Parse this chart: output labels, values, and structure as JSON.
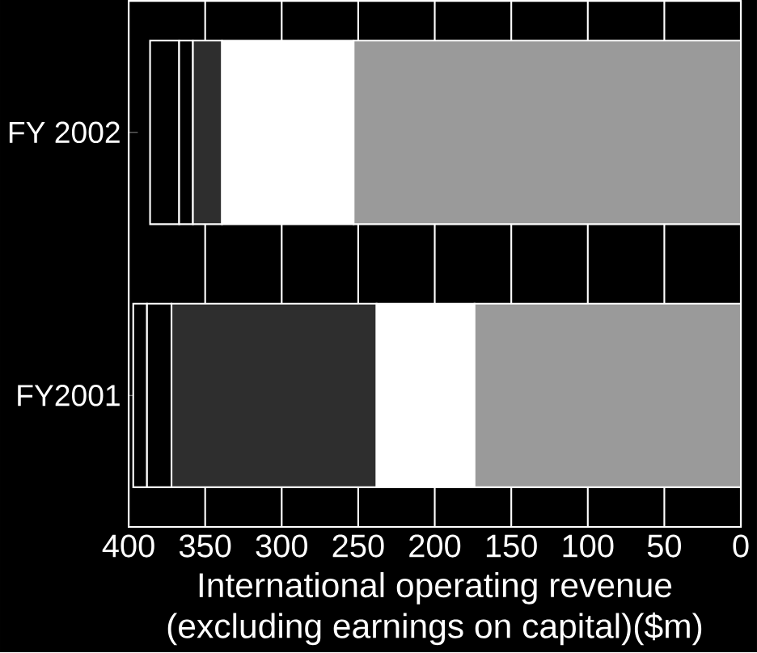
{
  "chart_data": {
    "type": "bar",
    "orientation": "horizontal",
    "stacked": true,
    "xlabel": "International operating revenue\n(excluding earnings on capital)($m)",
    "categories": [
      "FY 2002",
      "FY2001"
    ],
    "series": [
      {
        "color": "#9a9a9a",
        "values": [
          253,
          174
        ]
      },
      {
        "color": "#ffffff",
        "values": [
          86,
          64
        ]
      },
      {
        "color": "#2e2e2e",
        "values": [
          19,
          134
        ]
      },
      {
        "color": "#000000",
        "values": [
          9,
          16
        ]
      },
      {
        "color": "#000000",
        "values": [
          19,
          9
        ]
      }
    ],
    "xlim": [
      400,
      0
    ],
    "xticks": [
      0,
      50,
      100,
      150,
      200,
      250,
      300,
      350,
      400
    ],
    "grid": "x"
  }
}
